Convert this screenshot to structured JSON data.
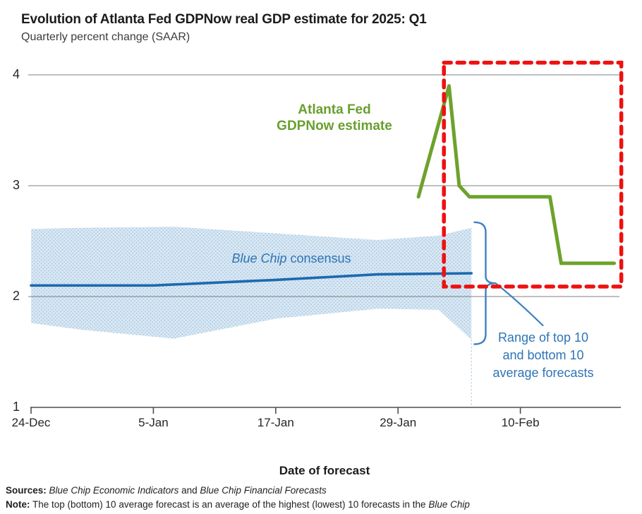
{
  "header": {
    "title": "Evolution of Atlanta Fed GDPNow real GDP estimate for 2025: Q1",
    "subtitle": "Quarterly percent change (SAAR)"
  },
  "chart_data": {
    "type": "line",
    "title": "Evolution of Atlanta Fed GDPNow real GDP estimate for 2025: Q1",
    "subtitle": "Quarterly percent change (SAAR)",
    "xlabel": "Date of forecast",
    "ylabel": "Quarterly percent change (SAAR)",
    "x_axis": {
      "title": "Date of forecast",
      "unit": "days after 24-Dec",
      "range_days": [
        0,
        58
      ],
      "ticks": [
        {
          "label": "24-Dec",
          "day": 0
        },
        {
          "label": "5-Jan",
          "day": 12
        },
        {
          "label": "17-Jan",
          "day": 24
        },
        {
          "label": "29-Jan",
          "day": 36
        },
        {
          "label": "10-Feb",
          "day": 48
        }
      ]
    },
    "y_axis": {
      "min": 1,
      "max": 4,
      "tick_labels": [
        "4",
        "3",
        "2",
        "1"
      ],
      "tick_values": [
        4,
        3,
        2,
        1
      ],
      "gridlines": [
        2,
        3,
        4
      ],
      "grid_color": "#7f7f7f",
      "axis_color": "#4f4f4f"
    },
    "series": [
      {
        "name": "Atlanta Fed GDPNow estimate",
        "color": "#6da22c",
        "width": 5,
        "dates": [
          "31-Jan",
          "3-Feb",
          "4-Feb",
          "5-Feb",
          "13-Feb",
          "14-Feb",
          "19-Feb"
        ],
        "days": [
          38,
          41,
          42,
          43,
          50.9,
          52,
          57.2
        ],
        "values": [
          2.9,
          3.9,
          3.0,
          2.9,
          2.9,
          2.3,
          2.3
        ]
      },
      {
        "name": "Blue Chip consensus",
        "color": "#1b6aae",
        "width": 3.6,
        "dates": [
          "24-Dec",
          "5-Jan",
          "17-Jan",
          "27-Jan",
          "6-Feb"
        ],
        "days": [
          0,
          12,
          24,
          34,
          43.2
        ],
        "values": [
          2.1,
          2.1,
          2.15,
          2.2,
          2.21
        ]
      }
    ],
    "band": {
      "name": "Range of top 10 and bottom 10 average forecasts",
      "fill_color": "#cfe1f0",
      "dot_color": "#94bcd9",
      "days": [
        0,
        5,
        14,
        24,
        34,
        40,
        43.2
      ],
      "low": [
        1.76,
        1.7,
        1.62,
        1.8,
        1.89,
        1.88,
        1.61
      ],
      "high": [
        2.61,
        2.62,
        2.63,
        2.57,
        2.51,
        2.55,
        2.62
      ]
    },
    "highlight_box": {
      "color": "#ee1111",
      "day_start": 40.5,
      "day_end": 57.9,
      "value_bottom": 2.09,
      "value_top": 4.11
    },
    "bracket_annotation": {
      "color": "#4080c0",
      "day": 44.6,
      "value_top": 2.67,
      "value_bottom": 1.57,
      "value_point": 2.12,
      "callout_end_day": 50.2,
      "callout_end_value": 1.74
    },
    "labels": {
      "gdpnow_line1": "Atlanta Fed",
      "gdpnow_line2": "GDPNow estimate",
      "gdpnow_color": "#69a02e",
      "consensus_italic": "Blue Chip",
      "consensus_rest": " consensus",
      "consensus_color": "#2e73b4",
      "range_line1": "Range of top 10",
      "range_line2": "and bottom 10",
      "range_line3": "average forecasts",
      "range_color": "#2e74b6"
    },
    "yticks_text": {
      "t4": "4",
      "t3": "3",
      "t2": "2",
      "t1": "1"
    }
  },
  "footer": {
    "sources_label": "Sources:",
    "sources_pub1": "Blue Chip Economic Indicators",
    "sources_join": " and ",
    "sources_pub2": "Blue Chip Financial Forecasts",
    "note_label": "Note:",
    "note_text": " The top (bottom) 10 average forecast is an average of the highest (lowest) 10 forecasts in the ",
    "note_italic": "Blue Chip"
  }
}
